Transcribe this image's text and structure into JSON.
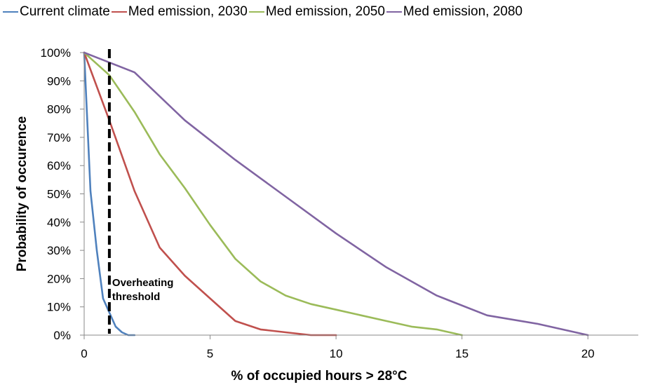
{
  "chart_data": {
    "type": "line",
    "xlabel": "% of occupied hours > 28°C",
    "ylabel": "Probability of occurence",
    "xlim": [
      0,
      22
    ],
    "ylim": [
      0,
      100
    ],
    "x_ticks": [
      0,
      5,
      10,
      15,
      20
    ],
    "x_tick_labels": [
      "0",
      "5",
      "10",
      "15",
      "20"
    ],
    "y_ticks": [
      0,
      10,
      20,
      30,
      40,
      50,
      60,
      70,
      80,
      90,
      100
    ],
    "y_tick_labels": [
      "0%",
      "10%",
      "20%",
      "30%",
      "40%",
      "50%",
      "60%",
      "70%",
      "80%",
      "90%",
      "100%"
    ],
    "grid": false,
    "legend_position": "top",
    "threshold": {
      "x": 1,
      "label_line1": "Overheating",
      "label_line2": "threshold"
    },
    "series": [
      {
        "name": "Current climate",
        "color": "#4f81bd",
        "x": [
          0,
          0.25,
          0.5,
          0.75,
          1.0,
          1.25,
          1.5,
          1.75,
          2.0
        ],
        "y": [
          100,
          51,
          30,
          13,
          8,
          3,
          1,
          0,
          0
        ]
      },
      {
        "name": "Med emission, 2030",
        "color": "#c0504d",
        "x": [
          0,
          1,
          2,
          3,
          4,
          5,
          6,
          7,
          8,
          9,
          10
        ],
        "y": [
          100,
          76,
          51,
          31,
          21,
          13,
          5,
          2,
          1,
          0,
          0
        ]
      },
      {
        "name": "Med emission, 2050",
        "color": "#9bbb59",
        "x": [
          0,
          1,
          2,
          3,
          4,
          5,
          6,
          7,
          8,
          9,
          10,
          11,
          12,
          13,
          14,
          15
        ],
        "y": [
          100,
          92,
          79,
          64,
          52,
          39,
          27,
          19,
          14,
          11,
          9,
          7,
          5,
          3,
          2,
          0
        ]
      },
      {
        "name": "Med emission, 2080",
        "color": "#8064a2",
        "x": [
          0,
          2,
          4,
          6,
          8,
          10,
          12,
          14,
          16,
          18,
          20
        ],
        "y": [
          100,
          93,
          76,
          62,
          49,
          36,
          24,
          14,
          7,
          4,
          0
        ]
      }
    ]
  }
}
